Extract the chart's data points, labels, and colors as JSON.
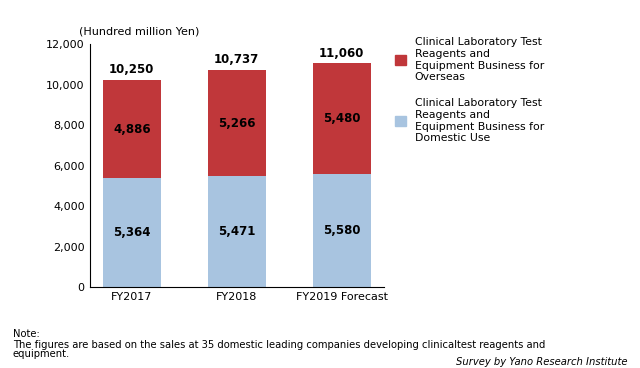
{
  "categories": [
    "FY2017",
    "FY2018",
    "FY2019 Forecast"
  ],
  "domestic_values": [
    5364,
    5471,
    5580
  ],
  "overseas_values": [
    4886,
    5266,
    5480
  ],
  "totals": [
    10250,
    10737,
    11060
  ],
  "domestic_color": "#a8c4e0",
  "overseas_color": "#c0373a",
  "ylabel": "(Hundred million Yen)",
  "ylim": [
    0,
    12000
  ],
  "yticks": [
    0,
    2000,
    4000,
    6000,
    8000,
    10000,
    12000
  ],
  "legend_overseas": "Clinical Laboratory Test\nReagents and\nEquipment Business for\nOverseas",
  "legend_domestic": "Clinical Laboratory Test\nReagents and\nEquipment Business for\nDomestic Use",
  "note_line1": "Note:",
  "note_line2": "The figures are based on the sales at 35 domestic leading companies developing clinicaltest reagents and",
  "note_line3": "equipment.",
  "credit": "Survey by Yano Research Institute",
  "bar_width": 0.55,
  "label_fontsize": 8.5,
  "note_fontsize": 7.2,
  "tick_fontsize": 8,
  "legend_fontsize": 7.8
}
